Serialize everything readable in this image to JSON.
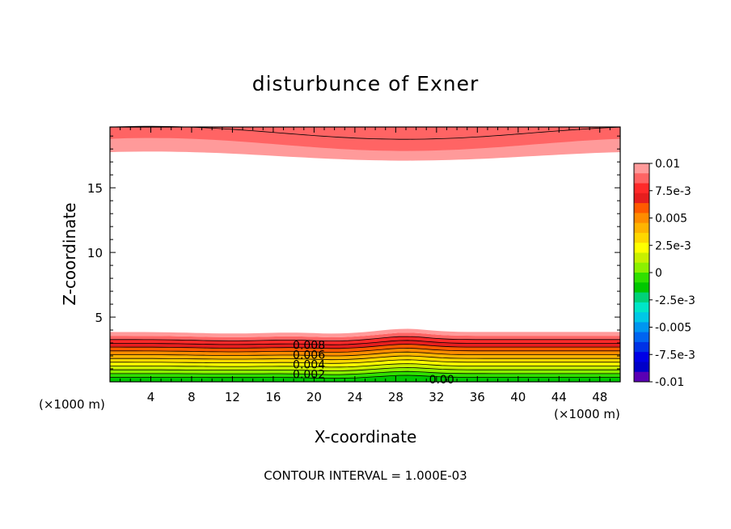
{
  "chart_data": {
    "type": "heatmap",
    "title": "disturbunce of Exner",
    "xlabel": "X-coordinate",
    "ylabel": "Z-coordinate",
    "x_unit_left": "(×1000 m)",
    "x_unit_right": "(×1000 m)",
    "footnote": "CONTOUR INTERVAL = 1.000E-03",
    "xlim": [
      0,
      50
    ],
    "ylim": [
      0,
      19.7
    ],
    "x_ticks": [
      4,
      8,
      12,
      16,
      20,
      24,
      28,
      32,
      36,
      40,
      44,
      48
    ],
    "y_ticks": [
      5,
      10,
      15
    ],
    "colorbar": {
      "labels": [
        "0.01",
        "7.5e-3",
        "0.005",
        "2.5e-3",
        "0",
        "-2.5e-3",
        "-0.005",
        "-7.5e-3",
        "-0.01"
      ],
      "levels": [
        0.01,
        0.0075,
        0.005,
        0.0025,
        0,
        -0.0025,
        -0.005,
        -0.0075,
        -0.01
      ],
      "colors_top_to_bottom": [
        "#ff9a9a",
        "#ff6464",
        "#ff2a2a",
        "#e61e1e",
        "#ff5a00",
        "#ff8c00",
        "#ffb400",
        "#ffd700",
        "#ffff00",
        "#c8f000",
        "#8cf000",
        "#30e000",
        "#00c800",
        "#00d278",
        "#00e6c8",
        "#00c8e6",
        "#0096f0",
        "#0064f0",
        "#0032e6",
        "#0000e6",
        "#0000c8",
        "#5a00b4"
      ]
    },
    "contour_labels": [
      {
        "text": "0.008",
        "x": 19.5,
        "z": 2.85
      },
      {
        "text": "0.006",
        "x": 19.5,
        "z": 2.1
      },
      {
        "text": "0.004",
        "x": 19.5,
        "z": 1.35
      },
      {
        "text": "0.002",
        "x": 19.5,
        "z": 0.6
      },
      {
        "text": "0.00",
        "x": 32.5,
        "z": 0.2
      }
    ],
    "lower_region": {
      "description_levels": [
        0.0,
        0.001,
        0.002,
        0.003,
        0.004,
        0.005,
        0.006,
        0.007,
        0.008,
        0.009,
        0.01
      ]
    },
    "upper_region": {
      "levels": [
        0.009,
        0.01
      ]
    }
  }
}
